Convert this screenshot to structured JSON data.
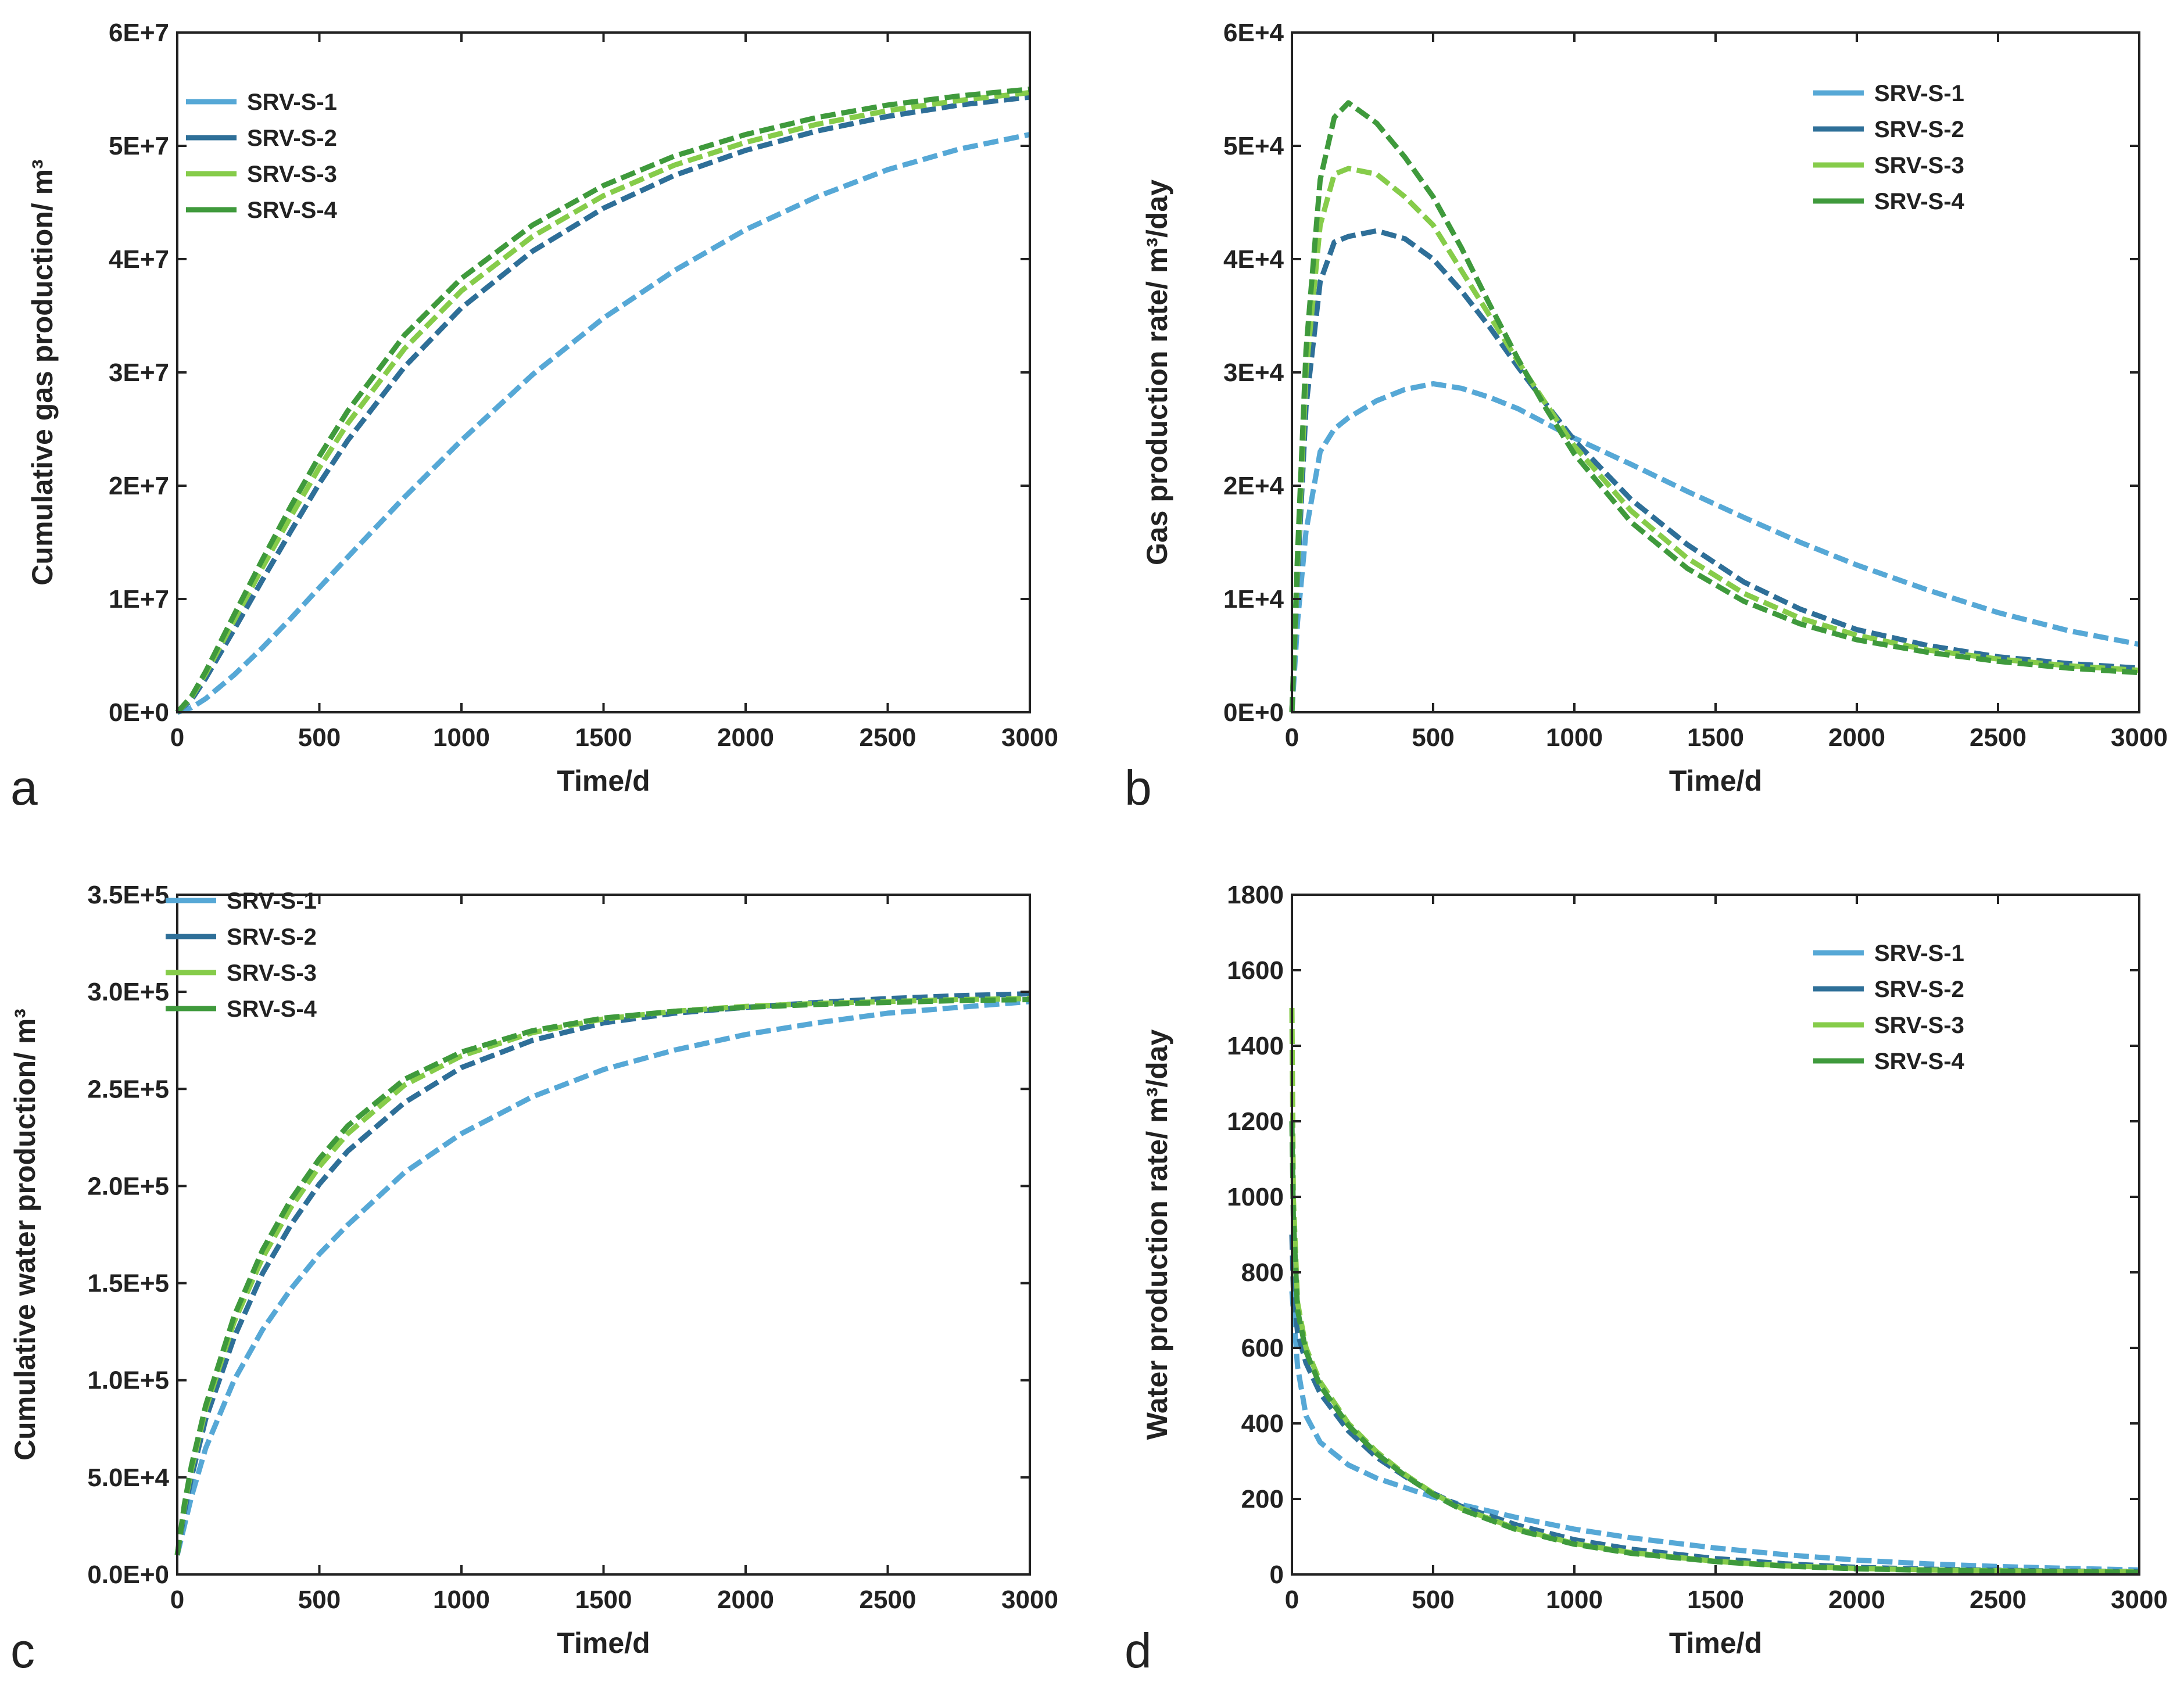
{
  "colors": {
    "SRV-S-1": "#56a8d6",
    "SRV-S-2": "#2e6f98",
    "SRV-S-3": "#86cc4a",
    "SRV-S-4": "#3f9a3c"
  },
  "chart_data": [
    {
      "panel": "a",
      "type": "line",
      "title": "",
      "xlabel": "Time/d",
      "ylabel": "Cumulative gas production/ m³",
      "xlim": [
        0,
        3000
      ],
      "ylim": [
        0,
        60000000
      ],
      "x_ticks": [
        0,
        500,
        1000,
        1500,
        2000,
        2500,
        3000
      ],
      "x_tick_labels": [
        "0",
        "500",
        "1000",
        "1500",
        "2000",
        "2500",
        "3000"
      ],
      "y_ticks": [
        0,
        10000000,
        20000000,
        30000000,
        40000000,
        50000000,
        60000000
      ],
      "y_tick_labels": [
        "0E+0",
        "1E+7",
        "2E+7",
        "3E+7",
        "4E+7",
        "5E+7",
        "6E+7"
      ],
      "legend_position": "top-left",
      "x": [
        0,
        50,
        100,
        200,
        300,
        400,
        500,
        600,
        800,
        1000,
        1250,
        1500,
        1750,
        2000,
        2250,
        2500,
        2750,
        3000
      ],
      "series": [
        {
          "name": "SRV-S-1",
          "values": [
            0,
            400000,
            1200000,
            3300000,
            5700000,
            8300000,
            11000000,
            13700000,
            19000000,
            24000000,
            29800000,
            34800000,
            39000000,
            42600000,
            45500000,
            47900000,
            49700000,
            51000000
          ]
        },
        {
          "name": "SRV-S-2",
          "values": [
            0,
            1100000,
            3000000,
            7300000,
            11700000,
            16000000,
            20200000,
            24000000,
            30500000,
            35700000,
            40700000,
            44500000,
            47400000,
            49600000,
            51300000,
            52600000,
            53600000,
            54300000
          ]
        },
        {
          "name": "SRV-S-3",
          "values": [
            0,
            1300000,
            3400000,
            8100000,
            12800000,
            17300000,
            21600000,
            25500000,
            32100000,
            37200000,
            42000000,
            45600000,
            48300000,
            50300000,
            51900000,
            53100000,
            54000000,
            54700000
          ]
        },
        {
          "name": "SRV-S-4",
          "values": [
            0,
            1400000,
            3600000,
            8600000,
            13500000,
            18200000,
            22600000,
            26600000,
            33300000,
            38300000,
            43000000,
            46500000,
            49100000,
            51000000,
            52500000,
            53600000,
            54400000,
            55000000
          ]
        }
      ]
    },
    {
      "panel": "b",
      "type": "line",
      "title": "",
      "xlabel": "Time/d",
      "ylabel": "Gas production rate/ m³/day",
      "xlim": [
        0,
        3000
      ],
      "ylim": [
        0,
        60000
      ],
      "x_ticks": [
        0,
        500,
        1000,
        1500,
        2000,
        2500,
        3000
      ],
      "x_tick_labels": [
        "0",
        "500",
        "1000",
        "1500",
        "2000",
        "2500",
        "3000"
      ],
      "y_ticks": [
        0,
        10000,
        20000,
        30000,
        40000,
        50000,
        60000
      ],
      "y_tick_labels": [
        "0E+0",
        "1E+4",
        "2E+4",
        "3E+4",
        "4E+4",
        "5E+4",
        "6E+4"
      ],
      "legend_position": "top-right",
      "x": [
        0,
        20,
        50,
        100,
        150,
        200,
        300,
        400,
        500,
        600,
        700,
        800,
        900,
        1000,
        1200,
        1400,
        1600,
        1800,
        2000,
        2250,
        2500,
        2750,
        3000
      ],
      "series": [
        {
          "name": "SRV-S-1",
          "values": [
            0,
            8000,
            16000,
            23000,
            25000,
            26000,
            27500,
            28500,
            29000,
            28600,
            27800,
            26800,
            25500,
            24200,
            21900,
            19500,
            17200,
            15000,
            13000,
            10800,
            8800,
            7200,
            6000
          ]
        },
        {
          "name": "SRV-S-2",
          "values": [
            0,
            12000,
            27000,
            38000,
            41500,
            42000,
            42500,
            41800,
            40000,
            37200,
            34000,
            30500,
            27200,
            24000,
            18800,
            14800,
            11500,
            9100,
            7300,
            5900,
            4900,
            4300,
            3900
          ]
        },
        {
          "name": "SRV-S-3",
          "values": [
            0,
            13000,
            30000,
            43000,
            47500,
            48000,
            47500,
            45500,
            43000,
            39000,
            35000,
            31000,
            27200,
            23500,
            17800,
            13600,
            10500,
            8300,
            6800,
            5500,
            4700,
            4100,
            3700
          ]
        },
        {
          "name": "SRV-S-4",
          "values": [
            0,
            14000,
            32000,
            47000,
            52500,
            53800,
            52000,
            49000,
            45500,
            41000,
            36000,
            31200,
            26800,
            22800,
            16800,
            12700,
            9800,
            7800,
            6400,
            5300,
            4500,
            3900,
            3500
          ]
        }
      ]
    },
    {
      "panel": "c",
      "type": "line",
      "title": "",
      "xlabel": "Time/d",
      "ylabel": "Cumulative water production/ m³",
      "xlim": [
        0,
        3000
      ],
      "ylim": [
        0,
        350000
      ],
      "x_ticks": [
        0,
        500,
        1000,
        1500,
        2000,
        2500,
        3000
      ],
      "x_tick_labels": [
        "0",
        "500",
        "1000",
        "1500",
        "2000",
        "2500",
        "3000"
      ],
      "y_ticks": [
        0,
        50000,
        100000,
        150000,
        200000,
        250000,
        300000,
        350000
      ],
      "y_tick_labels": [
        "0.0E+0",
        "5.0E+4",
        "1.0E+5",
        "1.5E+5",
        "2.0E+5",
        "2.5E+5",
        "3.0E+5",
        "3.5E+5"
      ],
      "legend_position": "top-left",
      "x": [
        0,
        25,
        50,
        100,
        200,
        300,
        400,
        500,
        600,
        800,
        1000,
        1250,
        1500,
        1750,
        2000,
        2250,
        2500,
        2750,
        3000
      ],
      "series": [
        {
          "name": "SRV-S-1",
          "values": [
            10000,
            25000,
            40000,
            65000,
            100000,
            126000,
            147000,
            165000,
            180000,
            207000,
            227000,
            246000,
            260000,
            270000,
            278000,
            284000,
            289000,
            292000,
            295000
          ]
        },
        {
          "name": "SRV-S-2",
          "values": [
            10000,
            32000,
            50000,
            80000,
            122000,
            155000,
            180000,
            201000,
            218000,
            243000,
            261000,
            275000,
            284000,
            289000,
            292000,
            294500,
            296500,
            298000,
            299000
          ]
        },
        {
          "name": "SRV-S-3",
          "values": [
            10000,
            35000,
            54000,
            85000,
            130000,
            163000,
            189000,
            210000,
            227000,
            252000,
            267000,
            279000,
            286000,
            290000,
            292500,
            294000,
            295000,
            296000,
            296500
          ]
        },
        {
          "name": "SRV-S-4",
          "values": [
            10000,
            36000,
            56000,
            87000,
            133000,
            167000,
            193000,
            214000,
            231000,
            255000,
            269000,
            280000,
            286500,
            290000,
            292000,
            293500,
            294500,
            295500,
            296000
          ]
        }
      ]
    },
    {
      "panel": "d",
      "type": "line",
      "title": "",
      "xlabel": "Time/d",
      "ylabel": "Water production rate/ m³/day",
      "xlim": [
        0,
        3000
      ],
      "ylim": [
        0,
        1800
      ],
      "x_ticks": [
        0,
        500,
        1000,
        1500,
        2000,
        2500,
        3000
      ],
      "x_tick_labels": [
        "0",
        "500",
        "1000",
        "1500",
        "2000",
        "2500",
        "3000"
      ],
      "y_ticks": [
        0,
        200,
        400,
        600,
        800,
        1000,
        1200,
        1400,
        1600,
        1800
      ],
      "y_tick_labels": [
        "0",
        "200",
        "400",
        "600",
        "800",
        "1000",
        "1200",
        "1400",
        "1600",
        "1800"
      ],
      "legend_position": "top-right",
      "x": [
        0,
        5,
        20,
        50,
        100,
        200,
        300,
        400,
        500,
        600,
        800,
        1000,
        1200,
        1500,
        1750,
        2000,
        2250,
        2500,
        2750,
        3000
      ],
      "series": [
        {
          "name": "SRV-S-1",
          "values": [
            750,
            700,
            550,
            420,
            350,
            290,
            255,
            230,
            205,
            185,
            150,
            120,
            97,
            70,
            52,
            38,
            28,
            21,
            16,
            12
          ]
        },
        {
          "name": "SRV-S-2",
          "values": [
            900,
            760,
            640,
            560,
            480,
            380,
            310,
            260,
            215,
            180,
            130,
            92,
            67,
            42,
            28,
            19,
            14,
            11,
            9,
            8
          ]
        },
        {
          "name": "SRV-S-3",
          "values": [
            1500,
            1000,
            720,
            600,
            510,
            400,
            325,
            265,
            215,
            175,
            120,
            82,
            58,
            35,
            23,
            16,
            12,
            10,
            8,
            7
          ]
        },
        {
          "name": "SRV-S-4",
          "values": [
            1200,
            950,
            700,
            590,
            500,
            395,
            320,
            262,
            212,
            172,
            117,
            80,
            56,
            34,
            22,
            15,
            11,
            9,
            7,
            6
          ]
        }
      ]
    }
  ]
}
